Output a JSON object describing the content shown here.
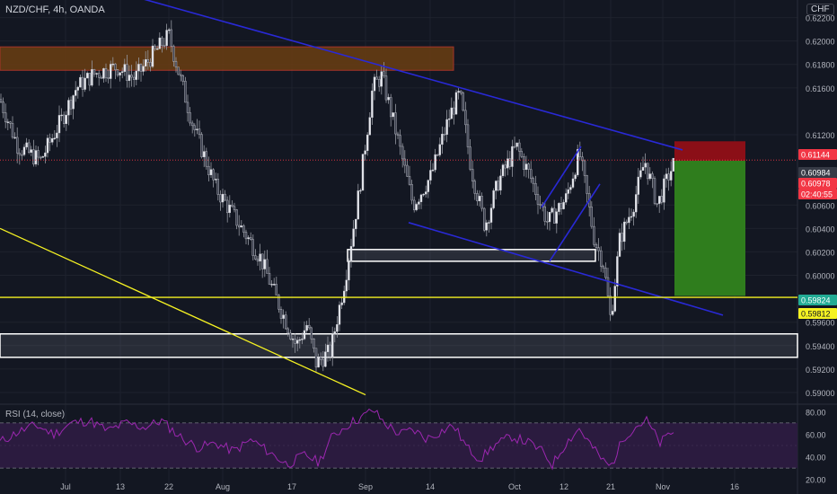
{
  "header": {
    "symbol": "NZD/CHF",
    "timeframe": "4h",
    "source": "OANDA",
    "currency": "CHF"
  },
  "rsi": {
    "label": "RSI (14, close)",
    "levels": [
      "80.00",
      "60.00",
      "40.00",
      "20.00"
    ]
  },
  "colors": {
    "background": "#131722",
    "grid": "#1e222d",
    "candle_up": "#d1d4dc",
    "candle_down": "#d1d4dc",
    "trendline": "#2929d6",
    "support_line": "#f5f222",
    "supply_zone": "#6b3e12",
    "stop_zone": "#8b0f17",
    "target_zone": "#2f7d1d",
    "rsi_line": "#9c27b0",
    "rsi_band": "#2b1b3f"
  },
  "chart_data": {
    "type": "candlestick",
    "instrument": "NZD/CHF",
    "interval": "4h",
    "ylim": [
      0.589,
      0.6235
    ],
    "price_ticks": [
      "0.62200",
      "0.62000",
      "0.61800",
      "0.61600",
      "0.61200",
      "0.60600",
      "0.60400",
      "0.60200",
      "0.60000",
      "0.59600",
      "0.59400",
      "0.59200",
      "0.59000"
    ],
    "x_ticks": [
      "Jul",
      "13",
      "22",
      "Aug",
      "17",
      "Sep",
      "14",
      "Oct",
      "12",
      "21",
      "Nov",
      "16"
    ],
    "price_labels": [
      {
        "text": "0.61144",
        "value": 0.61144,
        "color": "#f23645",
        "kind": "stop"
      },
      {
        "text": "0.60984",
        "value": 0.60984,
        "color": "#363a45",
        "kind": "last"
      },
      {
        "text": "0.60978",
        "value": 0.60978,
        "color": "#f23645",
        "kind": "entry"
      },
      {
        "text": "02:40:55",
        "value": 0.60925,
        "color": "#f23645",
        "kind": "countdown"
      },
      {
        "text": "0.59824",
        "value": 0.59824,
        "color": "#22ab94",
        "kind": "target"
      },
      {
        "text": "0.59812",
        "value": 0.59812,
        "color": "#f5f222",
        "kind": "level"
      }
    ],
    "close_path": [
      [
        0,
        0.615
      ],
      [
        20,
        0.611
      ],
      [
        45,
        0.6098
      ],
      [
        70,
        0.6135
      ],
      [
        85,
        0.616
      ],
      [
        105,
        0.6172
      ],
      [
        130,
        0.6178
      ],
      [
        150,
        0.6168
      ],
      [
        170,
        0.6188
      ],
      [
        188,
        0.6205
      ],
      [
        200,
        0.617
      ],
      [
        215,
        0.6128
      ],
      [
        240,
        0.6075
      ],
      [
        265,
        0.6045
      ],
      [
        290,
        0.6015
      ],
      [
        312,
        0.5972
      ],
      [
        330,
        0.594
      ],
      [
        342,
        0.5958
      ],
      [
        352,
        0.5925
      ],
      [
        368,
        0.5935
      ],
      [
        385,
        0.6
      ],
      [
        400,
        0.6072
      ],
      [
        415,
        0.616
      ],
      [
        425,
        0.617
      ],
      [
        440,
        0.6125
      ],
      [
        460,
        0.606
      ],
      [
        480,
        0.6085
      ],
      [
        500,
        0.6135
      ],
      [
        512,
        0.6155
      ],
      [
        525,
        0.609
      ],
      [
        540,
        0.6042
      ],
      [
        555,
        0.608
      ],
      [
        575,
        0.611
      ],
      [
        590,
        0.6085
      ],
      [
        610,
        0.6045
      ],
      [
        630,
        0.6065
      ],
      [
        645,
        0.6105
      ],
      [
        662,
        0.603
      ],
      [
        672,
        0.601
      ],
      [
        680,
        0.5962
      ],
      [
        690,
        0.603
      ],
      [
        705,
        0.606
      ],
      [
        718,
        0.6098
      ],
      [
        732,
        0.606
      ],
      [
        746,
        0.6088
      ],
      [
        752,
        0.6098
      ]
    ],
    "rsi_path": [
      [
        0,
        53
      ],
      [
        20,
        62
      ],
      [
        40,
        68
      ],
      [
        60,
        60
      ],
      [
        80,
        70
      ],
      [
        100,
        72
      ],
      [
        120,
        63
      ],
      [
        140,
        70
      ],
      [
        160,
        66
      ],
      [
        180,
        72
      ],
      [
        200,
        58
      ],
      [
        220,
        48
      ],
      [
        240,
        52
      ],
      [
        260,
        45
      ],
      [
        280,
        55
      ],
      [
        300,
        44
      ],
      [
        320,
        33
      ],
      [
        340,
        42
      ],
      [
        355,
        35
      ],
      [
        370,
        58
      ],
      [
        390,
        70
      ],
      [
        405,
        76
      ],
      [
        415,
        82
      ],
      [
        428,
        70
      ],
      [
        445,
        60
      ],
      [
        460,
        64
      ],
      [
        475,
        56
      ],
      [
        490,
        62
      ],
      [
        505,
        68
      ],
      [
        520,
        48
      ],
      [
        535,
        38
      ],
      [
        550,
        50
      ],
      [
        570,
        58
      ],
      [
        590,
        52
      ],
      [
        605,
        44
      ],
      [
        615,
        33
      ],
      [
        630,
        52
      ],
      [
        645,
        65
      ],
      [
        660,
        48
      ],
      [
        672,
        36
      ],
      [
        680,
        31
      ],
      [
        695,
        58
      ],
      [
        710,
        68
      ],
      [
        720,
        72
      ],
      [
        735,
        52
      ],
      [
        748,
        62
      ]
    ],
    "zones": [
      {
        "kind": "supply",
        "x0": 0,
        "x1": 505,
        "y_top": 0.6195,
        "y_bot": 0.6175
      },
      {
        "kind": "stop",
        "x0": 751,
        "x1": 830,
        "y_top": 0.61144,
        "y_bot": 0.60978
      },
      {
        "kind": "target",
        "x0": 751,
        "x1": 830,
        "y_top": 0.60978,
        "y_bot": 0.59824
      },
      {
        "kind": "box",
        "x0": 387,
        "x1": 663,
        "y_top": 0.6022,
        "y_bot": 0.6012
      },
      {
        "kind": "box",
        "x0": 0,
        "x1": 888,
        "y_top": 0.595,
        "y_bot": 0.593
      }
    ],
    "lines": [
      {
        "kind": "trend",
        "x0": 140,
        "y0": 0.624,
        "x1": 760,
        "y1": 0.6107
      },
      {
        "kind": "trend",
        "x0": 455,
        "y0": 0.6045,
        "x1": 805,
        "y1": 0.5966
      },
      {
        "kind": "trend",
        "x0": 603,
        "y0": 0.6058,
        "x1": 647,
        "y1": 0.611
      },
      {
        "kind": "trend",
        "x0": 612,
        "y0": 0.6012,
        "x1": 668,
        "y1": 0.6078
      },
      {
        "kind": "support",
        "x0": 0,
        "y0": 0.604,
        "x1": 407,
        "y1": 0.5898
      },
      {
        "kind": "support",
        "x0": 0,
        "y0": 0.59812,
        "x1": 888,
        "y1": 0.59812
      },
      {
        "kind": "dotted",
        "x0": 0,
        "y0": 0.60984,
        "x1": 888,
        "y1": 0.60984
      }
    ]
  }
}
